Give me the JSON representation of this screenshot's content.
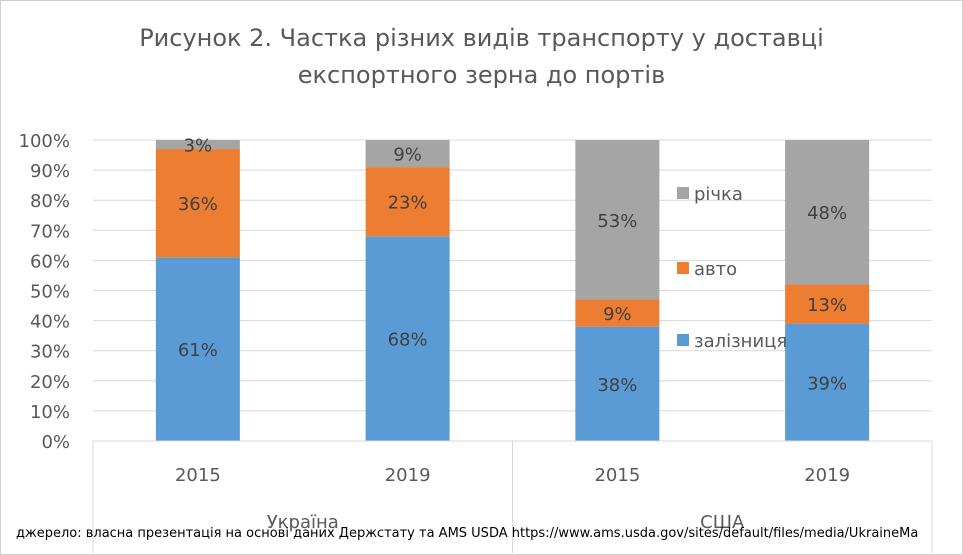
{
  "chart_data": {
    "type": "bar",
    "stacked": true,
    "title_lines": [
      "Рисунок 2. Частка різних видів транспорту у доставці",
      "експортного зерна до портів"
    ],
    "categories": [
      "2015",
      "2019",
      "2015",
      "2019"
    ],
    "groups": [
      {
        "label": "Україна",
        "categories": [
          "2015",
          "2019"
        ]
      },
      {
        "label": "США",
        "categories": [
          "2015",
          "2019"
        ]
      }
    ],
    "series": [
      {
        "name": "залізниця",
        "values": [
          61,
          68,
          38,
          39
        ],
        "labels": [
          "61%",
          "68%",
          "38%",
          "39%"
        ],
        "color": "#5b9bd5"
      },
      {
        "name": "авто",
        "values": [
          36,
          23,
          9,
          13
        ],
        "labels": [
          "36%",
          "23%",
          "9%",
          "13%"
        ],
        "color": "#ed7d31"
      },
      {
        "name": "річка",
        "values": [
          3,
          9,
          53,
          48
        ],
        "labels": [
          "3%",
          "9%",
          "53%",
          "48%"
        ],
        "color": "#a5a5a5"
      }
    ],
    "y_ticks": [
      "0%",
      "10%",
      "20%",
      "30%",
      "40%",
      "50%",
      "60%",
      "70%",
      "80%",
      "90%",
      "100%"
    ],
    "ylim": [
      0,
      100
    ],
    "grid": true,
    "legend_position": "center-right, inside plot"
  },
  "source_note": "джерело: власна презентація на основі даних Держстату та AMS USDA  https://www.ams.usda.gov/sites/default/files/media/UkraineMa"
}
